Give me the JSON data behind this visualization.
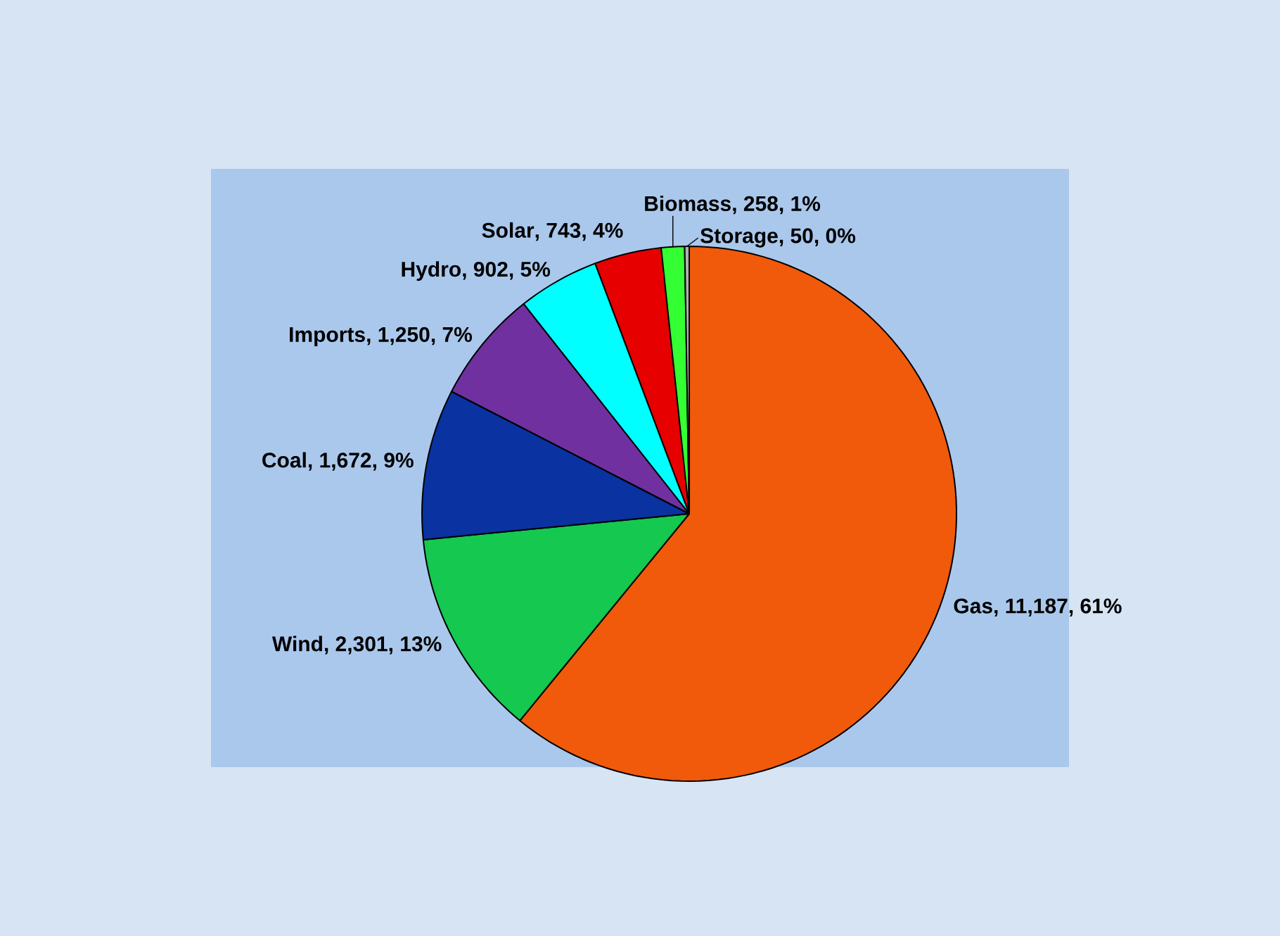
{
  "chart_data": {
    "type": "pie",
    "categories": [
      "Gas",
      "Wind",
      "Coal",
      "Imports",
      "Hydro",
      "Solar",
      "Biomass",
      "Storage"
    ],
    "values": [
      11187,
      2301,
      1672,
      1250,
      902,
      743,
      258,
      50
    ],
    "value_labels": [
      ", 11,187, 61%",
      ", 2,301, 13%",
      ", 1,672, 9%",
      ", 1,250, 7%",
      ", 902, 5%",
      ", 743, 4%",
      ", 258, 1%",
      ", 50, 0%"
    ],
    "colors": [
      "#f05a0a",
      "#14c850",
      "#0a32a0",
      "#7030a0",
      "#00ffff",
      "#e60000",
      "#33ff33",
      "#b0b0b0"
    ]
  }
}
